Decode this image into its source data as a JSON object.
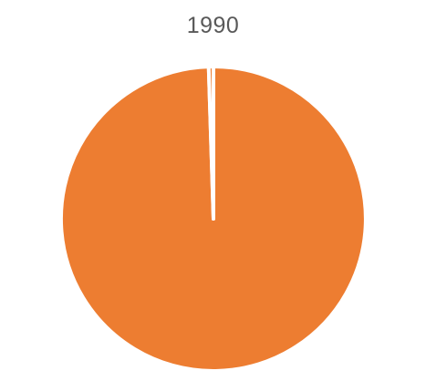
{
  "chart_data": {
    "type": "pie",
    "title": "1990",
    "slices": [
      {
        "value": 99.5,
        "color": "#ED7D31"
      },
      {
        "value": 0.5,
        "color": "#ED7D31"
      }
    ],
    "legend": "none"
  }
}
